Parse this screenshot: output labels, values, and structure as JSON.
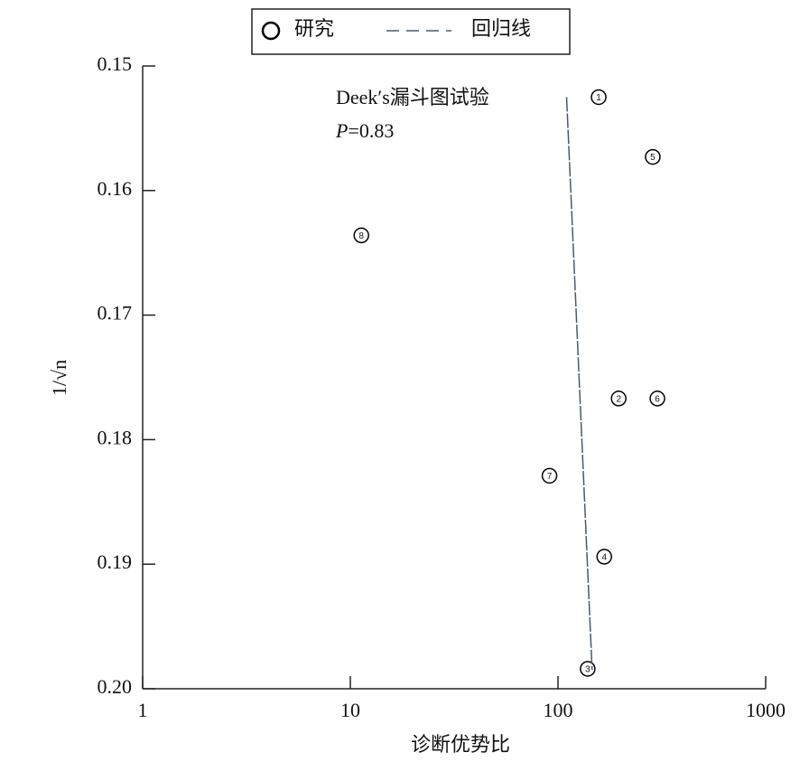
{
  "chart_data": {
    "type": "scatter",
    "xlabel": "诊断优势比",
    "ylabel": "1/√n",
    "annotations": [
      "Deek′s漏斗图试验",
      [
        "P",
        "=0.83"
      ]
    ],
    "series": [
      {
        "name": "研究",
        "mode": "markers",
        "color": "#000000",
        "point_labels": [
          "1",
          "2",
          "3",
          "4",
          "5",
          "6",
          "7",
          "8"
        ],
        "x": [
          157,
          196,
          139,
          167,
          286,
          301,
          91,
          11.3
        ],
        "values": [
          0.1525,
          0.1767,
          0.1984,
          0.1894,
          0.1573,
          0.1767,
          0.1829,
          0.1636
        ]
      },
      {
        "name": "回归线",
        "mode": "dashed-line",
        "color": "#4a5a6a",
        "x": [
          110,
          146
        ],
        "values": [
          0.1525,
          0.1985
        ]
      }
    ],
    "xlim": [
      1,
      1000
    ],
    "xticks": [
      1,
      10,
      100,
      1000
    ],
    "xscale": "log",
    "ylim": [
      0.15,
      0.2
    ],
    "y_reversed": true,
    "yticks": [
      0.15,
      0.16,
      0.17,
      0.18,
      0.19,
      {
        "value": 0.2,
        "label": "0.20"
      }
    ],
    "legend": "top"
  }
}
